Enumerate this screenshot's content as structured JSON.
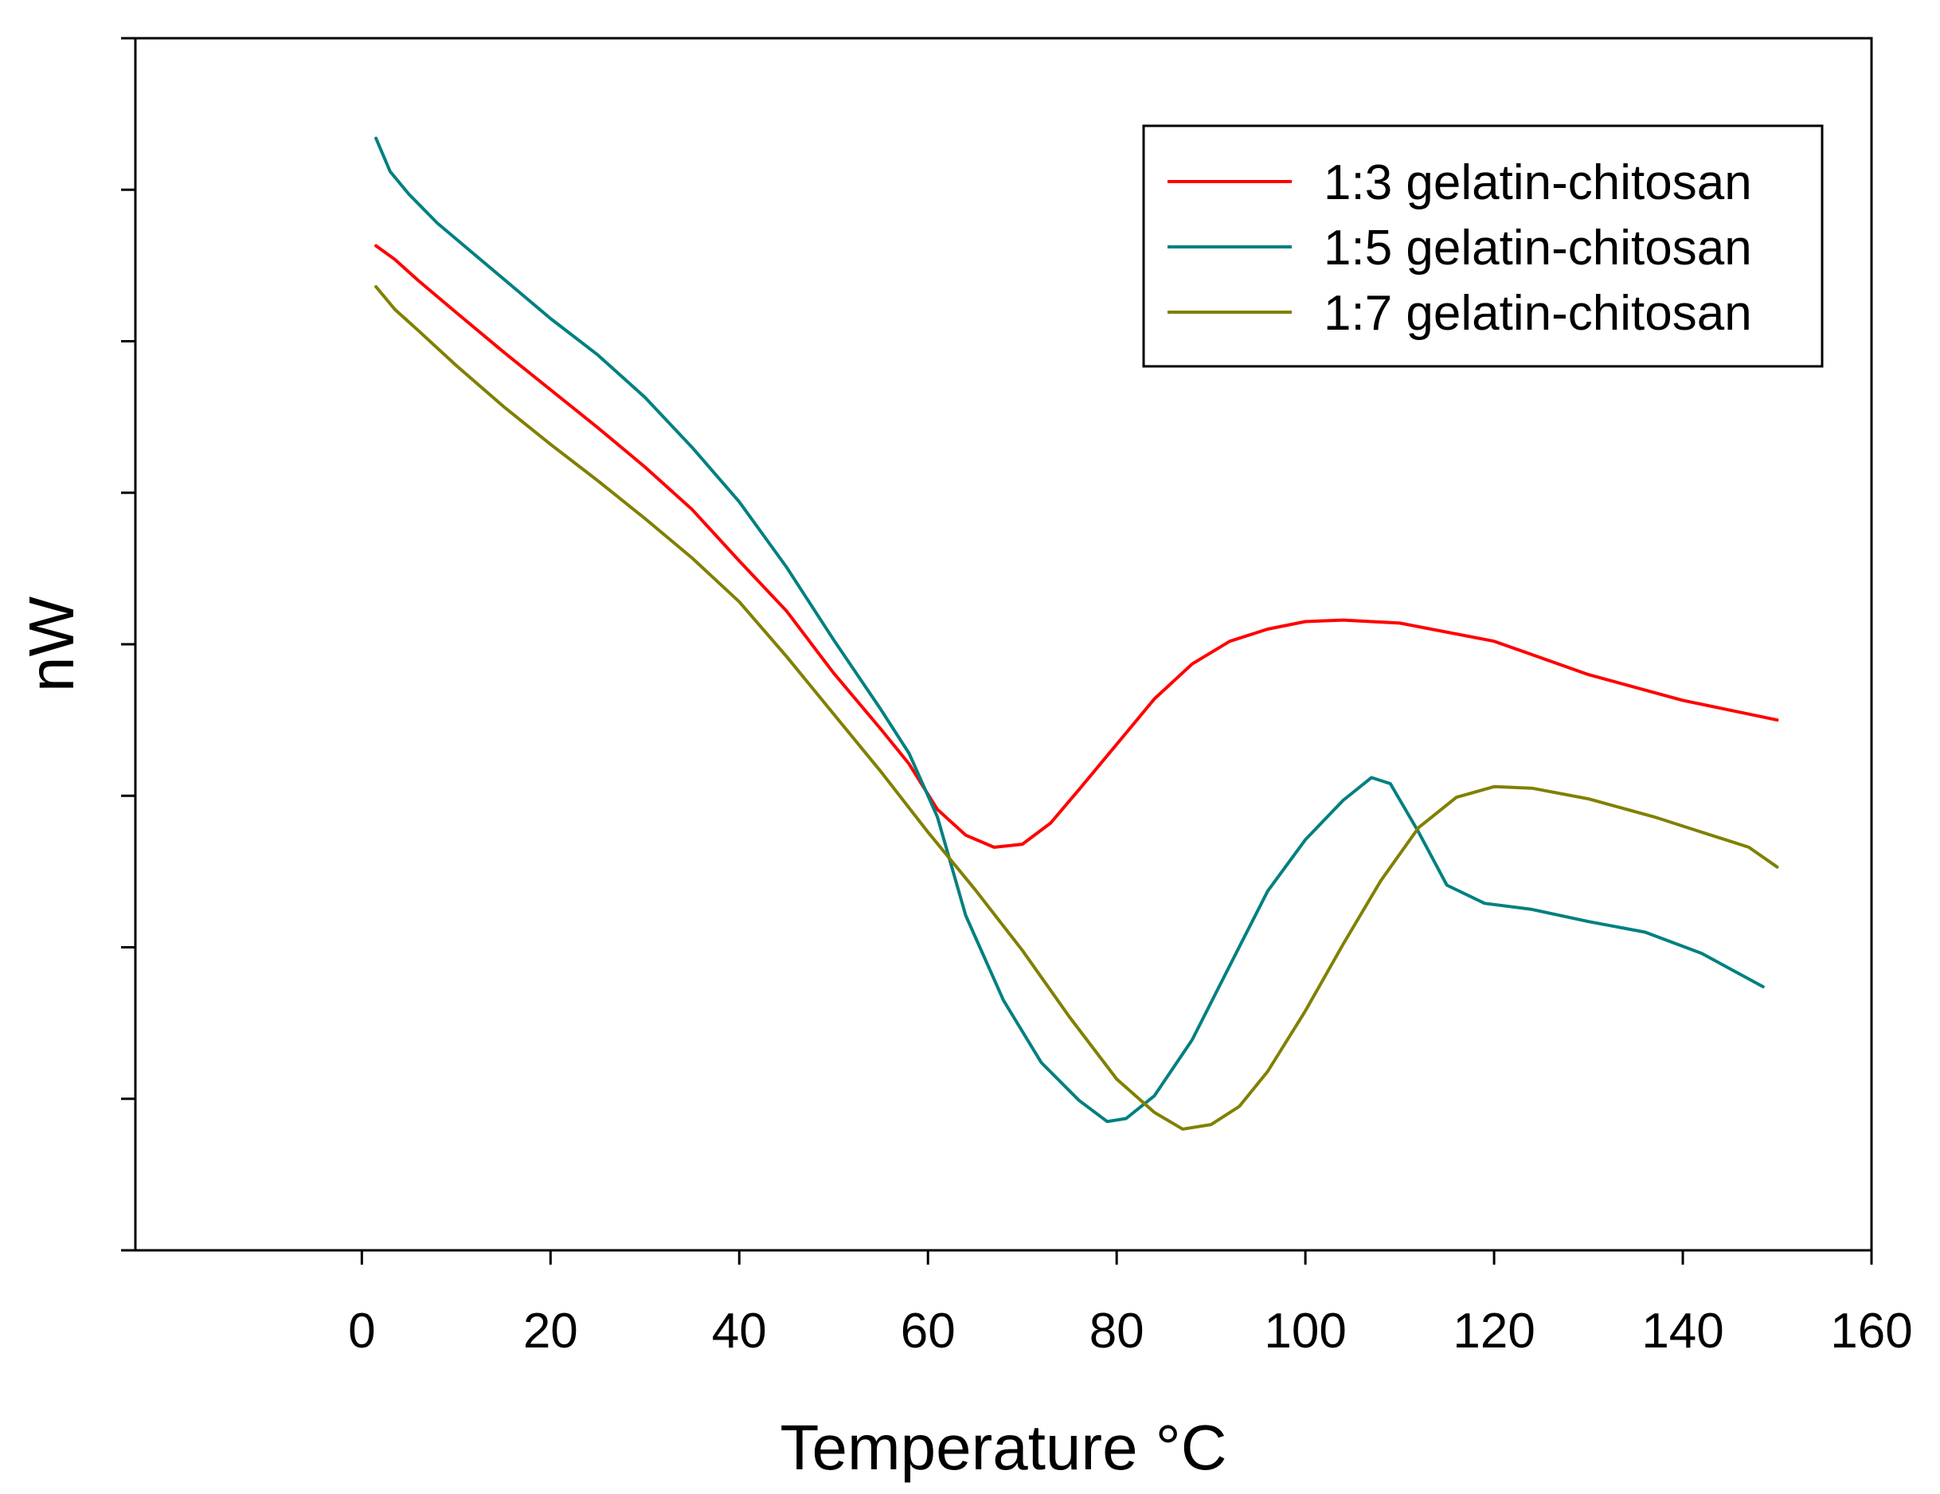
{
  "chart_data": {
    "type": "line",
    "xlabel": "Temperature °C",
    "ylabel": "nW",
    "xlim": [
      -24,
      160
    ],
    "ylim": [
      -8,
      8
    ],
    "x_ticks": [
      0,
      20,
      40,
      60,
      80,
      100,
      120,
      140,
      160
    ],
    "y_ticks": [
      -6,
      -4,
      -2,
      0,
      2,
      4,
      6
    ],
    "y_tick_labels_shown": false,
    "grid": false,
    "legend_position": "top-right",
    "series": [
      {
        "name": "1:3 gelatin-chitosan",
        "color": "#ff0000",
        "points": [
          [
            1.5,
            5.26
          ],
          [
            3.5,
            5.08
          ],
          [
            6,
            4.8
          ],
          [
            10,
            4.38
          ],
          [
            15,
            3.86
          ],
          [
            20,
            3.36
          ],
          [
            25,
            2.86
          ],
          [
            30,
            2.34
          ],
          [
            35,
            1.78
          ],
          [
            40,
            1.1
          ],
          [
            45,
            0.44
          ],
          [
            50,
            -0.38
          ],
          [
            55,
            -1.12
          ],
          [
            58,
            -1.58
          ],
          [
            61,
            -2.18
          ],
          [
            64,
            -2.52
          ],
          [
            67,
            -2.68
          ],
          [
            70,
            -2.64
          ],
          [
            73,
            -2.36
          ],
          [
            76,
            -1.92
          ],
          [
            80,
            -1.32
          ],
          [
            84,
            -0.72
          ],
          [
            88,
            -0.26
          ],
          [
            92,
            0.04
          ],
          [
            96,
            0.2
          ],
          [
            100,
            0.3
          ],
          [
            104,
            0.32
          ],
          [
            110,
            0.28
          ],
          [
            120,
            0.04
          ],
          [
            130,
            -0.4
          ],
          [
            140,
            -0.74
          ],
          [
            150,
            -1.0
          ]
        ]
      },
      {
        "name": "1:5 gelatin-chitosan",
        "color": "#008080",
        "points": [
          [
            1.5,
            6.68
          ],
          [
            3,
            6.24
          ],
          [
            5,
            5.94
          ],
          [
            8,
            5.56
          ],
          [
            12,
            5.14
          ],
          [
            16,
            4.72
          ],
          [
            20,
            4.3
          ],
          [
            25,
            3.82
          ],
          [
            30,
            3.26
          ],
          [
            35,
            2.6
          ],
          [
            40,
            1.88
          ],
          [
            45,
            1.02
          ],
          [
            50,
            0.06
          ],
          [
            55,
            -0.86
          ],
          [
            58,
            -1.44
          ],
          [
            61,
            -2.28
          ],
          [
            64,
            -3.58
          ],
          [
            68,
            -4.7
          ],
          [
            72,
            -5.52
          ],
          [
            76,
            -6.02
          ],
          [
            79,
            -6.3
          ],
          [
            81,
            -6.26
          ],
          [
            84,
            -5.96
          ],
          [
            88,
            -5.22
          ],
          [
            92,
            -4.24
          ],
          [
            96,
            -3.26
          ],
          [
            100,
            -2.58
          ],
          [
            104,
            -2.06
          ],
          [
            107,
            -1.76
          ],
          [
            109,
            -1.84
          ],
          [
            112,
            -2.48
          ],
          [
            115,
            -3.18
          ],
          [
            119,
            -3.42
          ],
          [
            124,
            -3.5
          ],
          [
            130,
            -3.66
          ],
          [
            136,
            -3.8
          ],
          [
            142,
            -4.08
          ],
          [
            148.5,
            -4.52
          ]
        ]
      },
      {
        "name": "1:7 gelatin-chitosan",
        "color": "#808000",
        "points": [
          [
            1.5,
            4.72
          ],
          [
            3.5,
            4.42
          ],
          [
            6,
            4.14
          ],
          [
            10,
            3.68
          ],
          [
            15,
            3.14
          ],
          [
            20,
            2.64
          ],
          [
            25,
            2.16
          ],
          [
            30,
            1.66
          ],
          [
            35,
            1.14
          ],
          [
            40,
            0.56
          ],
          [
            45,
            -0.16
          ],
          [
            50,
            -0.92
          ],
          [
            55,
            -1.68
          ],
          [
            60,
            -2.48
          ],
          [
            65,
            -3.24
          ],
          [
            70,
            -4.04
          ],
          [
            75,
            -4.92
          ],
          [
            80,
            -5.74
          ],
          [
            84,
            -6.18
          ],
          [
            87,
            -6.4
          ],
          [
            90,
            -6.34
          ],
          [
            93,
            -6.1
          ],
          [
            96,
            -5.64
          ],
          [
            100,
            -4.84
          ],
          [
            104,
            -3.96
          ],
          [
            108,
            -3.12
          ],
          [
            112,
            -2.42
          ],
          [
            116,
            -2.02
          ],
          [
            120,
            -1.88
          ],
          [
            124,
            -1.9
          ],
          [
            130,
            -2.04
          ],
          [
            137,
            -2.28
          ],
          [
            141,
            -2.44
          ],
          [
            147,
            -2.68
          ],
          [
            150,
            -2.94
          ]
        ]
      }
    ]
  }
}
